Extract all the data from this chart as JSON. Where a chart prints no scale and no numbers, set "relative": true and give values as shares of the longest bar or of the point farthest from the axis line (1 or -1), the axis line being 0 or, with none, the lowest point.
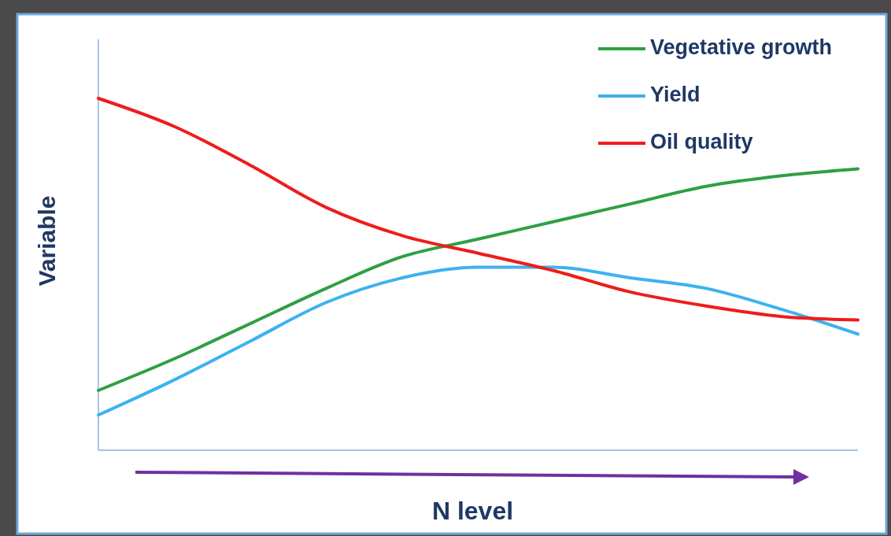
{
  "chart_data": {
    "type": "line",
    "relative": true,
    "xlabel": "N level",
    "ylabel": "Variable",
    "categories": [
      null,
      null,
      null,
      null,
      null,
      null,
      null,
      null,
      null,
      null,
      null
    ],
    "series": [
      {
        "name": "Vegetative growth",
        "color": "#2ea043",
        "values": [
          0.17,
          0.26,
          0.36,
          0.46,
          0.55,
          0.6,
          0.65,
          0.7,
          0.75,
          0.78,
          0.8
        ]
      },
      {
        "name": "Yield",
        "color": "#3db2f0",
        "values": [
          0.1,
          0.2,
          0.31,
          0.42,
          0.49,
          0.52,
          0.52,
          0.49,
          0.46,
          0.4,
          0.33
        ]
      },
      {
        "name": "Oil quality",
        "color": "#ee1c1c",
        "values": [
          1,
          0.92,
          0.81,
          0.69,
          0.61,
          0.56,
          0.51,
          0.45,
          0.41,
          0.38,
          0.37
        ]
      }
    ],
    "legend": "top right",
    "marker": "none",
    "line_style": "solid"
  }
}
